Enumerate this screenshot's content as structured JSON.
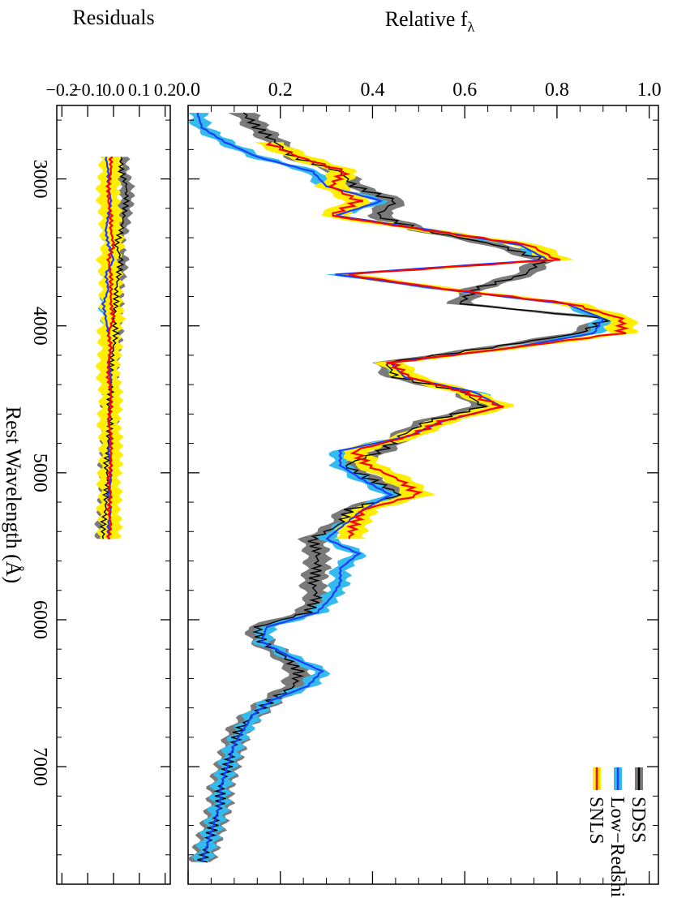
{
  "chart_data": [
    {
      "type": "line",
      "panel": "spectrum",
      "xlabel": "Rest Wavelength (Å)",
      "ylabel": "Relative fλ",
      "ylabel_main": "Relative f",
      "ylabel_sub": "λ",
      "xlim": [
        2500,
        7800
      ],
      "ylim": [
        0.0,
        1.02
      ],
      "xticks": [
        3000,
        4000,
        5000,
        6000,
        7000
      ],
      "xtick_labels": [
        "3000",
        "4000",
        "5000",
        "6000",
        "7000"
      ],
      "yticks": [
        0.0,
        0.2,
        0.4,
        0.6,
        0.8,
        1.0
      ],
      "ytick_labels": [
        "0.0",
        "0.2",
        "0.4",
        "0.6",
        "0.8",
        "1.0"
      ],
      "legend_placement": "bottom-right",
      "series": [
        {
          "name": "SDSS",
          "color": "#000000",
          "band_color": "#7a7a7a",
          "x": [
            2550,
            2650,
            2750,
            2850,
            2950,
            3050,
            3150,
            3250,
            3350,
            3450,
            3550,
            3650,
            3750,
            3850,
            3950,
            4050,
            4150,
            4250,
            4350,
            4450,
            4550,
            4650,
            4750,
            4850,
            4950,
            5050,
            5150,
            5250,
            5350,
            5450,
            5550,
            5650,
            5750,
            5850,
            5950,
            6050,
            6150,
            6250,
            6350,
            6450,
            6550,
            6650,
            6750,
            6850,
            6950,
            7050,
            7150,
            7250,
            7350,
            7450,
            7550,
            7650
          ],
          "y": [
            0.12,
            0.15,
            0.19,
            0.23,
            0.33,
            0.36,
            0.45,
            0.41,
            0.51,
            0.67,
            0.77,
            0.73,
            0.62,
            0.59,
            0.91,
            0.85,
            0.65,
            0.43,
            0.45,
            0.6,
            0.64,
            0.52,
            0.46,
            0.42,
            0.34,
            0.4,
            0.46,
            0.35,
            0.33,
            0.27,
            0.28,
            0.28,
            0.27,
            0.28,
            0.26,
            0.15,
            0.16,
            0.21,
            0.24,
            0.23,
            0.18,
            0.14,
            0.11,
            0.1,
            0.09,
            0.08,
            0.07,
            0.07,
            0.06,
            0.05,
            0.04,
            0.03
          ]
        },
        {
          "name": "Low−Redshift",
          "color": "#1e3cff",
          "band_color": "#33bbee",
          "x": [
            2550,
            2650,
            2750,
            2850,
            2950,
            3050,
            3150,
            3250,
            3350,
            3450,
            3550,
            3650,
            3750,
            3850,
            3950,
            4050,
            4150,
            4250,
            4350,
            4450,
            4550,
            4650,
            4750,
            4850,
            4950,
            5050,
            5150,
            5250,
            5350,
            5450,
            5550,
            5650,
            5750,
            5850,
            5950,
            6050,
            6150,
            6250,
            6350,
            6450,
            6550,
            6650,
            6750,
            6850,
            6950,
            7050,
            7150,
            7250,
            7350,
            7450,
            7550,
            7650
          ],
          "y": [
            0.02,
            0.03,
            0.08,
            0.15,
            0.27,
            0.3,
            0.42,
            0.32,
            0.53,
            0.72,
            0.78,
            0.32,
            0.55,
            0.82,
            0.9,
            0.88,
            0.7,
            0.44,
            0.47,
            0.62,
            0.68,
            0.55,
            0.48,
            0.33,
            0.33,
            0.38,
            0.44,
            0.38,
            0.34,
            0.3,
            0.37,
            0.33,
            0.33,
            0.31,
            0.28,
            0.17,
            0.16,
            0.22,
            0.29,
            0.26,
            0.18,
            0.14,
            0.12,
            0.1,
            0.09,
            0.08,
            0.07,
            0.07,
            0.06,
            0.05,
            0.04,
            0.03
          ]
        },
        {
          "name": "SNLS",
          "color": "#ff0000",
          "band_color": "#ffee00",
          "x": [
            2750,
            2850,
            2950,
            3050,
            3150,
            3250,
            3350,
            3450,
            3550,
            3650,
            3750,
            3850,
            3950,
            4050,
            4150,
            4250,
            4350,
            4450,
            4550,
            4650,
            4750,
            4850,
            4950,
            5050,
            5150,
            5250,
            5350,
            5450
          ],
          "y": [
            0.17,
            0.24,
            0.34,
            0.31,
            0.37,
            0.31,
            0.52,
            0.74,
            0.8,
            0.34,
            0.56,
            0.83,
            0.94,
            0.94,
            0.7,
            0.44,
            0.48,
            0.6,
            0.68,
            0.55,
            0.48,
            0.36,
            0.39,
            0.46,
            0.5,
            0.38,
            0.36,
            0.35
          ]
        }
      ]
    },
    {
      "type": "line",
      "panel": "residuals",
      "ylabel": "Residuals",
      "xlim": [
        2500,
        7800
      ],
      "ylim": [
        -0.22,
        0.22
      ],
      "yticks": [
        -0.2,
        -0.1,
        0.0,
        0.1,
        0.2
      ],
      "ytick_labels": [
        "−0.2",
        "−0.1",
        "0.0",
        "0.1",
        "0.2"
      ],
      "series": [
        {
          "name": "SDSS",
          "color": "#000000",
          "band_color": "#7a7a7a",
          "x": [
            2850,
            2950,
            3050,
            3150,
            3250,
            3350,
            3450,
            3550,
            3650,
            3750,
            3850,
            3950,
            4050,
            4150,
            4250,
            4350,
            4450,
            4550,
            4650,
            4750,
            4850,
            4950,
            5050,
            5150,
            5250,
            5350,
            5450
          ],
          "y": [
            0.03,
            0.03,
            0.05,
            0.05,
            0.04,
            0.03,
            0.01,
            0.03,
            0.02,
            0.01,
            0.01,
            0.0,
            0.01,
            0.0,
            -0.01,
            -0.01,
            -0.01,
            -0.02,
            -0.01,
            -0.02,
            -0.02,
            -0.03,
            -0.02,
            -0.03,
            -0.03,
            -0.04,
            -0.04
          ]
        },
        {
          "name": "Low−Redshift",
          "color": "#1e3cff",
          "band_color": "#33bbee",
          "x": [
            2850,
            2950,
            3050,
            3150,
            3250,
            3350,
            3450,
            3550,
            3650,
            3750,
            3850,
            3950,
            4050,
            4150,
            4250,
            4350,
            4450,
            4550,
            4650,
            4750,
            4850,
            4950,
            5050,
            5150,
            5250,
            5350,
            5450
          ],
          "y": [
            -0.03,
            -0.02,
            -0.02,
            -0.01,
            -0.02,
            -0.03,
            -0.02,
            0.0,
            -0.03,
            -0.02,
            -0.04,
            -0.03,
            -0.02,
            -0.01,
            -0.02,
            -0.01,
            -0.01,
            -0.01,
            -0.02,
            -0.01,
            -0.02,
            -0.01,
            -0.01,
            -0.02,
            -0.01,
            -0.02,
            -0.02
          ]
        },
        {
          "name": "SNLS",
          "color": "#ff0000",
          "band_color": "#ffee00",
          "x": [
            2850,
            2950,
            3050,
            3150,
            3250,
            3350,
            3450,
            3550,
            3650,
            3750,
            3850,
            3950,
            4050,
            4150,
            4250,
            4350,
            4450,
            4550,
            4650,
            4750,
            4850,
            4950,
            5050,
            5150,
            5250,
            5350,
            5450
          ],
          "y": [
            -0.01,
            -0.01,
            -0.02,
            -0.02,
            -0.01,
            -0.01,
            0.0,
            -0.02,
            -0.01,
            -0.01,
            -0.01,
            0.0,
            -0.02,
            -0.01,
            -0.02,
            -0.02,
            -0.01,
            -0.01,
            -0.02,
            -0.01,
            -0.01,
            -0.01,
            -0.02,
            -0.01,
            -0.02,
            -0.01,
            -0.02
          ]
        }
      ]
    }
  ]
}
